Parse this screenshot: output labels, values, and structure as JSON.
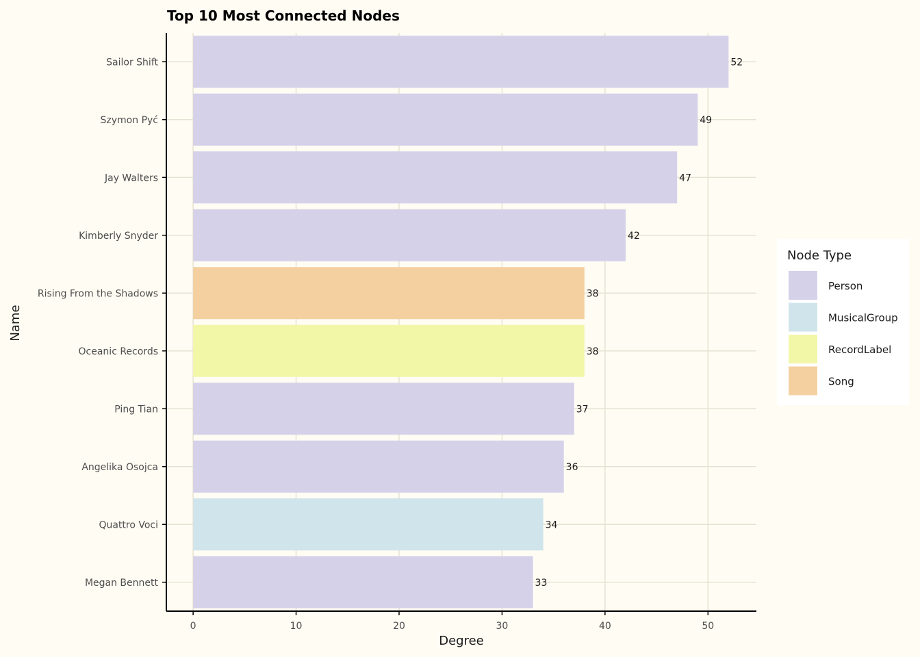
{
  "chart_data": {
    "type": "bar",
    "orientation": "horizontal",
    "title": "Top 10 Most Connected Nodes",
    "xlabel": "Degree",
    "ylabel": "Name",
    "xlim": [
      0,
      55
    ],
    "xticks": [
      0,
      10,
      20,
      30,
      40,
      50
    ],
    "grid": true,
    "legend": {
      "title": "Node Type",
      "placement": "right",
      "entries": [
        {
          "label": "Person",
          "color": "#d5d1e9"
        },
        {
          "label": "MusicalGroup",
          "color": "#d0e4ec"
        },
        {
          "label": "RecordLabel",
          "color": "#f2f7a8"
        },
        {
          "label": "Song",
          "color": "#f4d0a1"
        }
      ]
    },
    "categories": [
      "Sailor Shift",
      "Szymon Pyć",
      "Jay Walters",
      "Kimberly Snyder",
      "Rising From the Shadows",
      "Oceanic Records",
      "Ping Tian",
      "Angelika Osojca",
      "Quattro Voci",
      "Megan Bennett"
    ],
    "values": [
      52,
      49,
      47,
      42,
      38,
      38,
      37,
      36,
      34,
      33
    ],
    "node_types": [
      "Person",
      "Person",
      "Person",
      "Person",
      "Song",
      "RecordLabel",
      "Person",
      "Person",
      "MusicalGroup",
      "Person"
    ]
  }
}
